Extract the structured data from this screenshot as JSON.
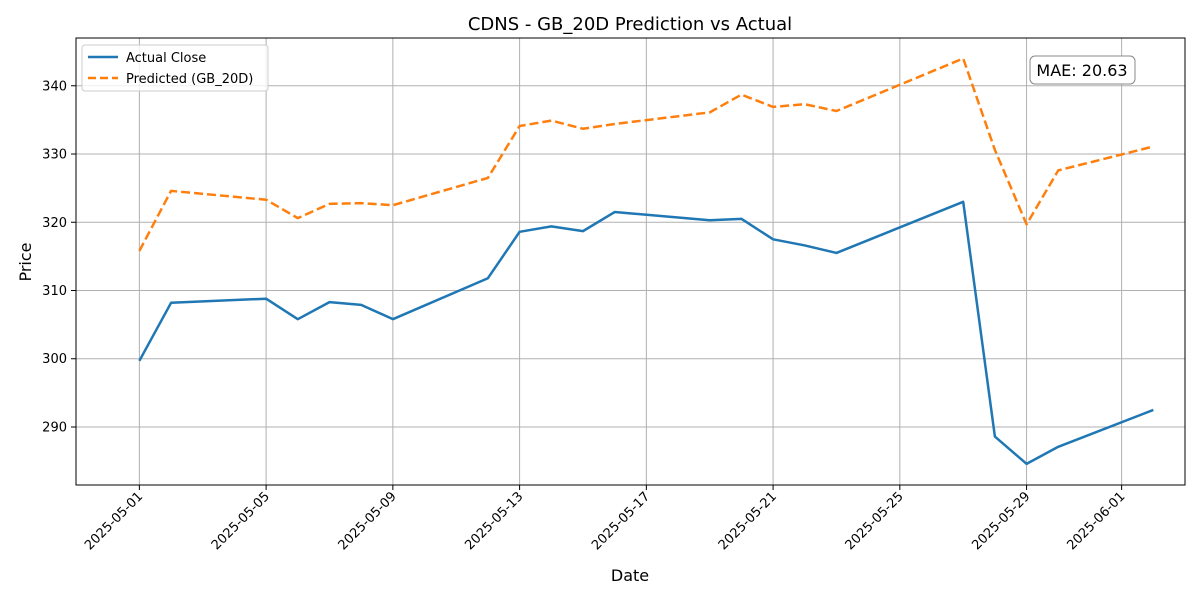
{
  "chart_data": {
    "type": "line",
    "title": "CDNS - GB_20D Prediction vs Actual",
    "xlabel": "Date",
    "ylabel": "Price",
    "grid": true,
    "legend_position": "top-left",
    "annotation": "MAE: 20.63",
    "x_ticks": [
      "2025-05-01",
      "2025-05-05",
      "2025-05-09",
      "2025-05-13",
      "2025-05-17",
      "2025-05-21",
      "2025-05-25",
      "2025-05-29",
      "2025-06-01"
    ],
    "y_ticks": [
      290,
      300,
      310,
      320,
      330,
      340
    ],
    "xlim": [
      "2025-04-29",
      "2025-06-03"
    ],
    "ylim": [
      281.5,
      347
    ],
    "x": [
      "2025-05-01",
      "2025-05-02",
      "2025-05-05",
      "2025-05-06",
      "2025-05-07",
      "2025-05-08",
      "2025-05-09",
      "2025-05-12",
      "2025-05-13",
      "2025-05-14",
      "2025-05-15",
      "2025-05-16",
      "2025-05-19",
      "2025-05-20",
      "2025-05-21",
      "2025-05-22",
      "2025-05-23",
      "2025-05-27",
      "2025-05-28",
      "2025-05-29",
      "2025-05-30",
      "2025-06-02"
    ],
    "series": [
      {
        "name": "Actual Close",
        "color": "#1f77b4",
        "style": "solid",
        "values": [
          299.7,
          308.2,
          308.8,
          305.8,
          308.3,
          307.9,
          305.8,
          311.8,
          318.6,
          319.4,
          318.7,
          321.5,
          320.3,
          320.5,
          317.5,
          316.6,
          315.5,
          323.0,
          288.6,
          284.6,
          287.1,
          292.5
        ]
      },
      {
        "name": "Predicted (GB_20D)",
        "color": "#ff7f0e",
        "style": "dashed",
        "values": [
          315.8,
          324.6,
          323.3,
          320.6,
          322.7,
          322.8,
          322.5,
          326.5,
          334.1,
          334.9,
          333.7,
          334.4,
          336.1,
          338.7,
          336.9,
          337.3,
          336.3,
          344.0,
          330.6,
          319.7,
          327.6,
          331.1
        ]
      }
    ]
  }
}
